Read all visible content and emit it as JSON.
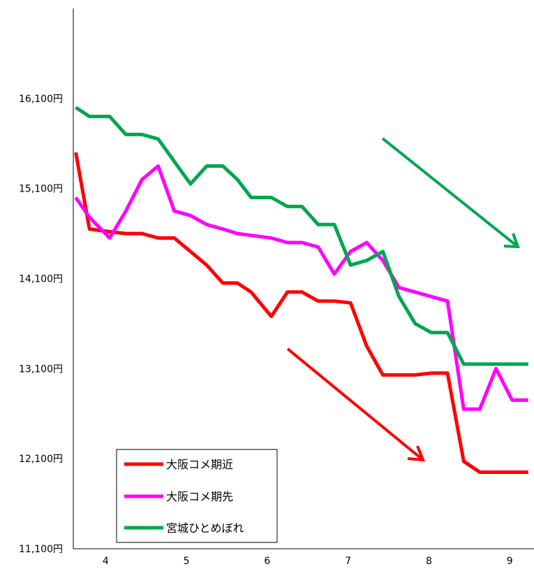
{
  "chart_data": {
    "type": "line",
    "title": "",
    "xlabel": "",
    "ylabel": "",
    "ylim": [
      11100,
      17100
    ],
    "y_ticks": [
      11100,
      12100,
      13100,
      14100,
      15100,
      16100
    ],
    "y_tick_labels": [
      "11,100円",
      "12,100円",
      "13,100円",
      "14,100円",
      "15,100円",
      "16,100円"
    ],
    "xlim": [
      3.6,
      9.3
    ],
    "x_ticks": [
      4,
      5,
      6,
      7,
      8,
      9
    ],
    "x_tick_labels": [
      "4",
      "5",
      "6",
      "7",
      "8",
      "9"
    ],
    "grid": false,
    "legend_position": "bottom-left",
    "series": [
      {
        "name": "大阪コメ期近",
        "color": "#ff0000",
        "x": [
          3.63,
          3.8,
          4.05,
          4.25,
          4.45,
          4.65,
          4.85,
          5.05,
          5.25,
          5.45,
          5.63,
          5.8,
          6.05,
          6.25,
          6.43,
          6.63,
          6.83,
          7.03,
          7.23,
          7.43,
          7.63,
          7.83,
          8.03,
          8.23,
          8.43,
          8.63,
          8.83,
          9.03,
          9.23
        ],
        "y": [
          15500,
          14650,
          14620,
          14600,
          14600,
          14550,
          14550,
          14400,
          14250,
          14050,
          14050,
          13950,
          13680,
          13950,
          13950,
          13850,
          13850,
          13830,
          13350,
          13030,
          13030,
          13030,
          13050,
          13050,
          12070,
          11950,
          11950,
          11950,
          11950
        ]
      },
      {
        "name": "大阪コメ期先",
        "color": "#ff00ff",
        "x": [
          3.63,
          3.8,
          4.05,
          4.25,
          4.45,
          4.65,
          4.85,
          5.05,
          5.25,
          5.45,
          5.63,
          5.8,
          6.05,
          6.25,
          6.43,
          6.63,
          6.83,
          7.03,
          7.23,
          7.43,
          7.63,
          7.83,
          8.03,
          8.23,
          8.43,
          8.63,
          8.83,
          9.03,
          9.23
        ],
        "y": [
          15000,
          14780,
          14550,
          14850,
          15200,
          15350,
          14850,
          14800,
          14700,
          14650,
          14600,
          14580,
          14550,
          14500,
          14500,
          14450,
          14150,
          14400,
          14500,
          14300,
          14000,
          13950,
          13900,
          13850,
          12650,
          12650,
          13100,
          12750,
          12750
        ]
      },
      {
        "name": "宮城ひとめぼれ",
        "color": "#00a651",
        "x": [
          3.63,
          3.8,
          4.05,
          4.25,
          4.45,
          4.65,
          4.85,
          5.05,
          5.25,
          5.45,
          5.63,
          5.8,
          6.05,
          6.25,
          6.43,
          6.63,
          6.83,
          7.03,
          7.23,
          7.43,
          7.63,
          7.83,
          8.03,
          8.23,
          8.43,
          8.63,
          8.83,
          9.03,
          9.23
        ],
        "y": [
          16000,
          15900,
          15900,
          15700,
          15700,
          15650,
          15400,
          15150,
          15350,
          15350,
          15200,
          15000,
          15000,
          14900,
          14900,
          14700,
          14700,
          14250,
          14300,
          14400,
          13900,
          13600,
          13500,
          13500,
          13150,
          13150,
          13150,
          13150,
          13150
        ]
      }
    ]
  }
}
